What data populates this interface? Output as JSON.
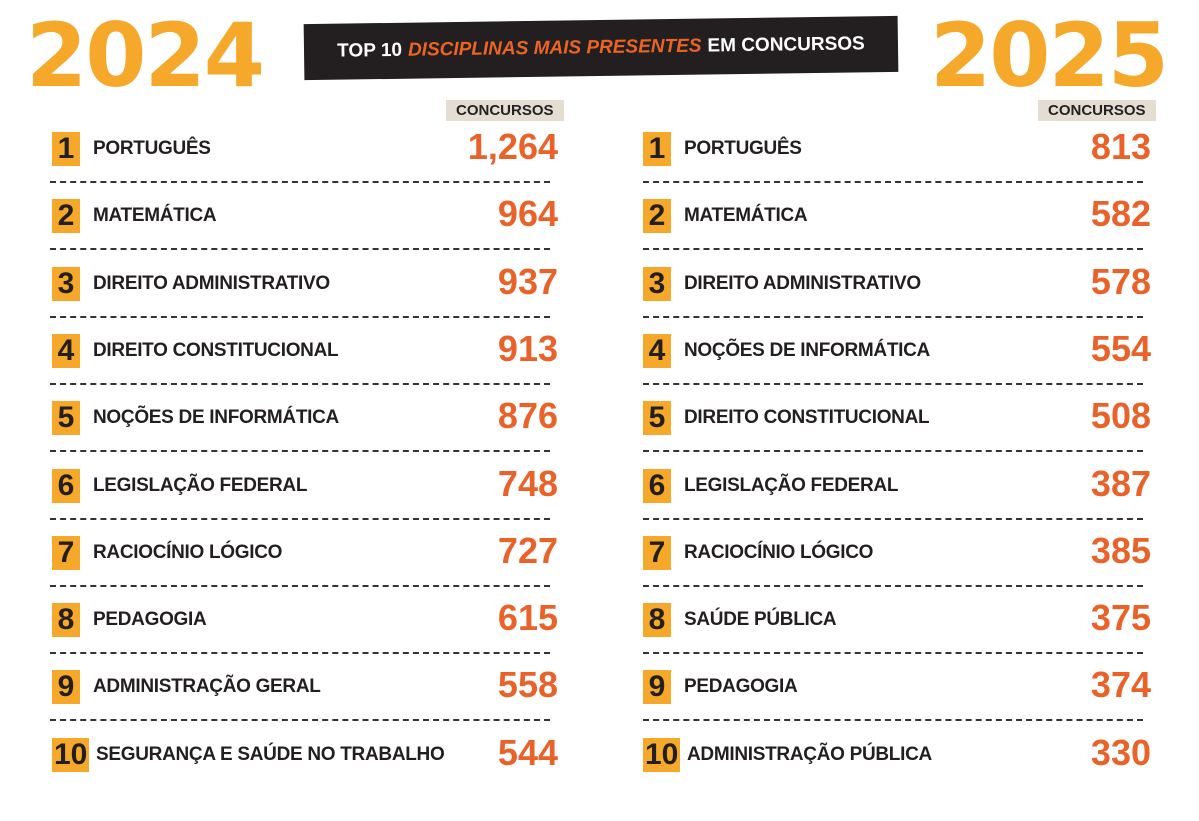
{
  "banner": {
    "prefix": "TOP 10",
    "highlight": "DISCIPLINAS MAIS PRESENTES",
    "suffix": "EM CONCURSOS"
  },
  "colors": {
    "accent": "#f5a82a",
    "value": "#e9622a",
    "banner_bg": "#231f20",
    "header_bg": "#e6ddd2"
  },
  "chart_data": [
    {
      "type": "table",
      "title": "2024",
      "column_header": "CONCURSOS",
      "rows": [
        {
          "rank": "1",
          "label": "PORTUGUÊS",
          "value": "1,264"
        },
        {
          "rank": "2",
          "label": "MATEMÁTICA",
          "value": "964"
        },
        {
          "rank": "3",
          "label": "DIREITO ADMINISTRATIVO",
          "value": "937"
        },
        {
          "rank": "4",
          "label": "DIREITO CONSTITUCIONAL",
          "value": "913"
        },
        {
          "rank": "5",
          "label": "NOÇÕES DE INFORMÁTICA",
          "value": "876"
        },
        {
          "rank": "6",
          "label": "LEGISLAÇÃO FEDERAL",
          "value": "748"
        },
        {
          "rank": "7",
          "label": "RACIOCÍNIO LÓGICO",
          "value": "727"
        },
        {
          "rank": "8",
          "label": "PEDAGOGIA",
          "value": "615"
        },
        {
          "rank": "9",
          "label": "ADMINISTRAÇÃO GERAL",
          "value": "558"
        },
        {
          "rank": "10",
          "label": "SEGURANÇA E SAÚDE NO TRABALHO",
          "value": "544"
        }
      ]
    },
    {
      "type": "table",
      "title": "2025",
      "column_header": "CONCURSOS",
      "rows": [
        {
          "rank": "1",
          "label": "PORTUGUÊS",
          "value": "813"
        },
        {
          "rank": "2",
          "label": "MATEMÁTICA",
          "value": "582"
        },
        {
          "rank": "3",
          "label": "DIREITO ADMINISTRATIVO",
          "value": "578"
        },
        {
          "rank": "4",
          "label": "NOÇÕES DE INFORMÁTICA",
          "value": "554"
        },
        {
          "rank": "5",
          "label": "DIREITO CONSTITUCIONAL",
          "value": "508"
        },
        {
          "rank": "6",
          "label": "LEGISLAÇÃO FEDERAL",
          "value": "387"
        },
        {
          "rank": "7",
          "label": "RACIOCÍNIO LÓGICO",
          "value": "385"
        },
        {
          "rank": "8",
          "label": "SAÚDE PÚBLICA",
          "value": "375"
        },
        {
          "rank": "9",
          "label": "PEDAGOGIA",
          "value": "374"
        },
        {
          "rank": "10",
          "label": "ADMINISTRAÇÃO PÚBLICA",
          "value": "330"
        }
      ]
    }
  ]
}
